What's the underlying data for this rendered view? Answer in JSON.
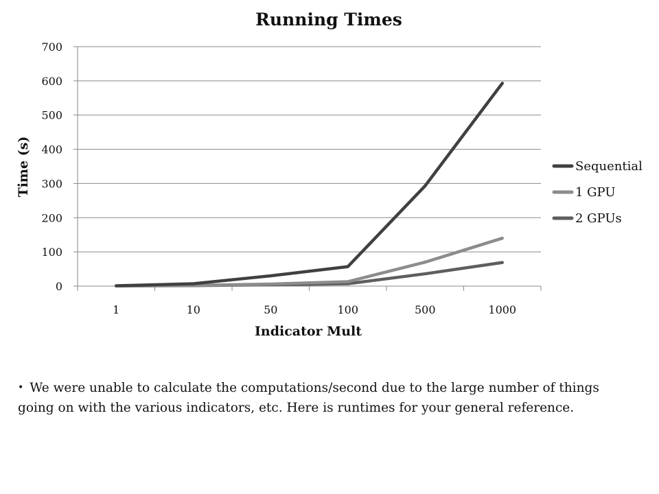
{
  "chart_data": {
    "type": "line",
    "title": "Running Times",
    "xlabel": "Indicator Mult",
    "ylabel": "Time (s)",
    "categories": [
      "1",
      "10",
      "50",
      "100",
      "500",
      "1000"
    ],
    "ylim": [
      0,
      700
    ],
    "yticks": [
      "0",
      "100",
      "200",
      "300",
      "400",
      "500",
      "600",
      "700"
    ],
    "grid": "horizontal",
    "legend_position": "right",
    "series": [
      {
        "name": "Sequential",
        "values": [
          1,
          7,
          30,
          57,
          293,
          593
        ],
        "color": "#404040"
      },
      {
        "name": "1 GPU",
        "values": [
          0.5,
          2,
          6,
          13,
          70,
          140
        ],
        "color": "#8c8c8c"
      },
      {
        "name": "2 GPUs",
        "values": [
          0.5,
          1.5,
          4,
          7,
          36,
          69
        ],
        "color": "#5e5e5e"
      }
    ]
  },
  "note": {
    "text": "We were unable to calculate the computations/second due to the large number of things going on with the various indicators, etc.  Here is runtimes for your general reference."
  }
}
